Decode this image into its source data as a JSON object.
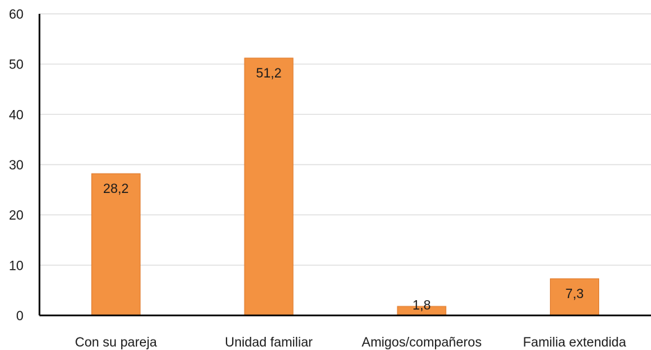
{
  "chart_data": {
    "type": "bar",
    "categories": [
      "Con su pareja",
      "Unidad familiar",
      "Amigos/compañeros",
      "Familia extendida"
    ],
    "values": [
      28.2,
      51.2,
      1.8,
      7.3
    ],
    "data_labels": [
      "28,2",
      "51,2",
      "1,8",
      "7,3"
    ],
    "title": "",
    "xlabel": "",
    "ylabel": "",
    "ylim": [
      0,
      60
    ],
    "yticks": [
      0,
      10,
      20,
      30,
      40,
      50,
      60
    ],
    "ytick_labels": [
      "0",
      "10",
      "20",
      "30",
      "40",
      "50",
      "60"
    ],
    "grid": true,
    "legend": "none",
    "colors": {
      "bar_fill": "#F39241",
      "bar_stroke": "#E07A2A",
      "grid": "#D9D9D9",
      "axis": "#000000"
    }
  }
}
